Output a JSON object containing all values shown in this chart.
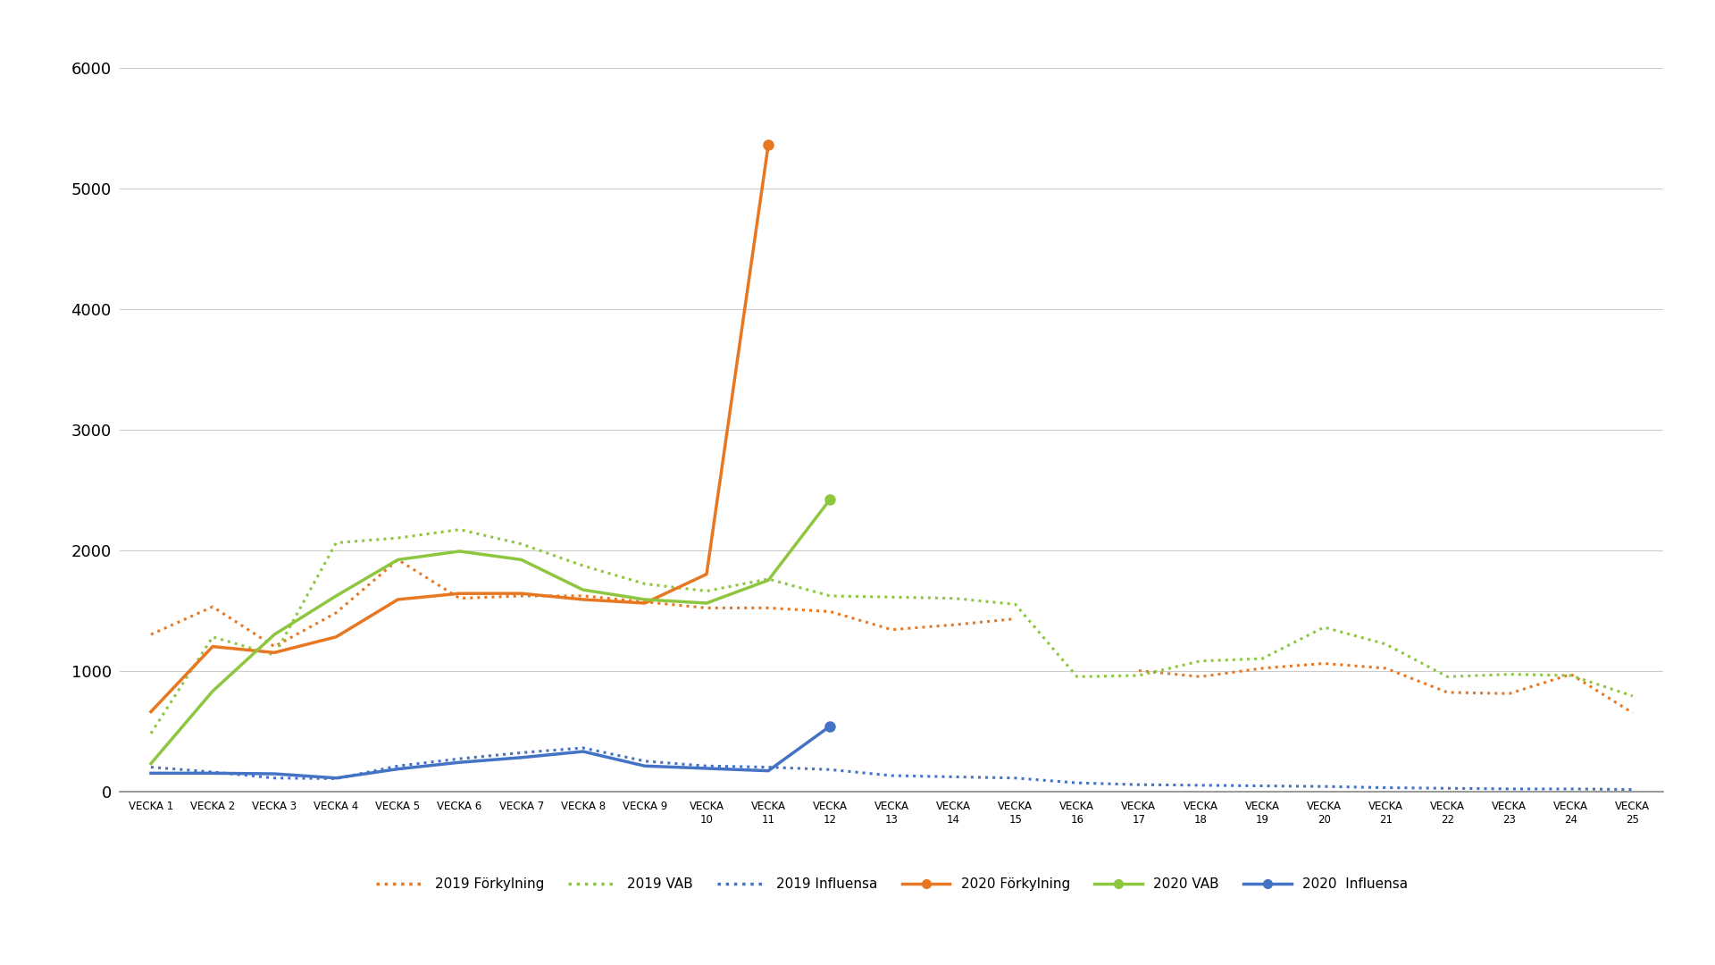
{
  "weeks": [
    "VECKA 1",
    "VECKA 2",
    "VECKA 3",
    "VECKA 4",
    "VECKA 5",
    "VECKA 6",
    "VECKA 7",
    "VECKA 8",
    "VECKA 9",
    "VECKA\n10",
    "VECKA\n11",
    "VECKA\n12",
    "VECKA\n13",
    "VECKA\n14",
    "VECKA\n15",
    "VECKA\n16",
    "VECKA\n17",
    "VECKA\n18",
    "VECKA\n19",
    "VECKA\n20",
    "VECKA\n21",
    "VECKA\n22",
    "VECKA\n23",
    "VECKA\n24",
    "VECKA\n25"
  ],
  "forkylning_2019": [
    1300,
    1530,
    1200,
    1480,
    1920,
    1600,
    1620,
    1620,
    1570,
    1520,
    1520,
    1490,
    1340,
    1380,
    1430,
    null,
    1000,
    950,
    1020,
    1060,
    1020,
    820,
    810,
    970,
    650
  ],
  "vab_2019": [
    480,
    1280,
    1130,
    2060,
    2100,
    2170,
    2050,
    1870,
    1720,
    1660,
    1760,
    1620,
    1610,
    1600,
    1550,
    950,
    960,
    1080,
    1100,
    1360,
    1220,
    950,
    970,
    960,
    790
  ],
  "influensa_2019": [
    200,
    160,
    110,
    105,
    210,
    270,
    320,
    360,
    250,
    210,
    200,
    180,
    130,
    120,
    110,
    70,
    55,
    50,
    45,
    40,
    30,
    25,
    20,
    20,
    15
  ],
  "forkylning_2020": [
    660,
    1200,
    1150,
    1280,
    1590,
    1640,
    1640,
    1590,
    1560,
    1800,
    5360,
    null,
    null,
    null,
    null,
    null,
    null,
    null,
    null,
    null,
    null,
    null,
    null,
    null,
    null
  ],
  "vab_2020": [
    230,
    830,
    1300,
    1620,
    1920,
    1990,
    1920,
    1670,
    1590,
    1560,
    1750,
    2420,
    null,
    null,
    null,
    null,
    null,
    null,
    null,
    null,
    null,
    null,
    null,
    null,
    null
  ],
  "influensa_2020": [
    150,
    150,
    145,
    110,
    185,
    240,
    280,
    330,
    210,
    190,
    170,
    540,
    null,
    null,
    null,
    null,
    null,
    null,
    null,
    null,
    null,
    null,
    null,
    null,
    null
  ],
  "color_forkylning_2019": "#E87722",
  "color_vab_2019": "#8DC63F",
  "color_influensa_2019": "#4472C4",
  "color_forkylning_2020": "#E87722",
  "color_vab_2020": "#8DC63F",
  "color_influensa_2020": "#4472C4",
  "ylim": [
    0,
    6000
  ],
  "yticks": [
    0,
    1000,
    2000,
    3000,
    4000,
    5000,
    6000
  ],
  "background_color": "#FFFFFF",
  "grid_color": "#CCCCCC",
  "legend_labels": [
    "2019 Förkylning",
    "2019 VAB",
    "2019 Influensa",
    "2020 Förkylning",
    "2020 VAB",
    "2020  Influensa"
  ]
}
